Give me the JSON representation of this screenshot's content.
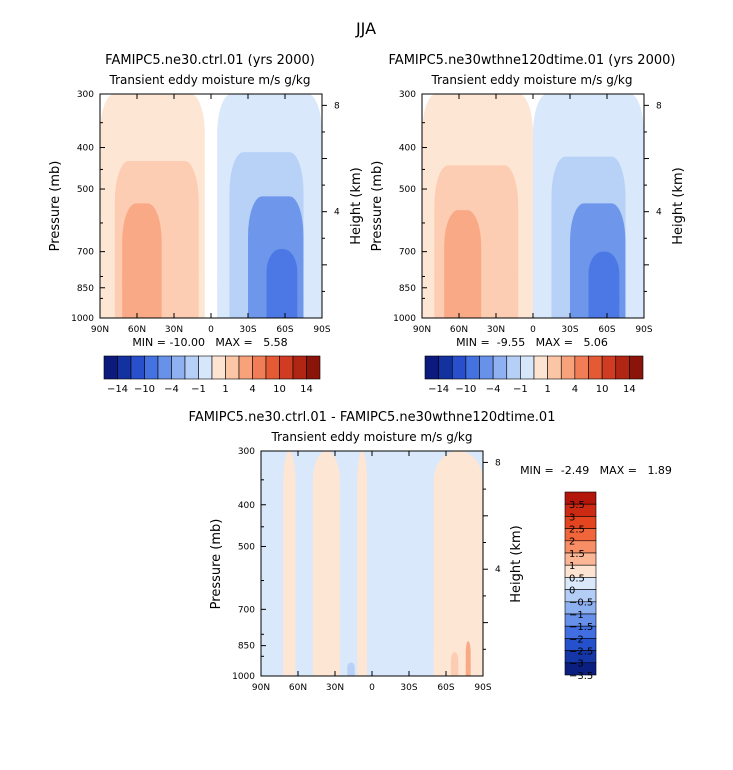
{
  "figure": {
    "season": "JJA"
  },
  "chart_data": [
    {
      "id": "ctrl",
      "type": "heatmap",
      "title": "FAMIPC5.ne30.ctrl.01 (yrs 2000)",
      "subtitle": "Transient eddy moisture m/s g/kg",
      "xlabel": "",
      "ylabel": "Pressure (mb)",
      "y2label": "Height (km)",
      "x_ticks": [
        "90N",
        "60N",
        "30N",
        "0",
        "30S",
        "60S",
        "90S"
      ],
      "xlim": [
        90,
        -90
      ],
      "y_ticks": [
        300,
        400,
        500,
        700,
        850,
        1000
      ],
      "ylim": [
        1000,
        300
      ],
      "y2_ticks": [
        4,
        8
      ],
      "stats_text": "MIN = -10.00   MAX =   5.58",
      "min": -10.0,
      "max": 5.58,
      "contour_levels": [
        -14,
        -12,
        -10,
        -8,
        -6,
        -4,
        -2,
        -1,
        0,
        1,
        2,
        4,
        6,
        8,
        10,
        12,
        14
      ],
      "colorbar_labels": [
        "-14",
        "-10",
        "-4",
        "-1",
        "1",
        "4",
        "10",
        "14"
      ],
      "features": [
        {
          "label": "positive lobe",
          "lat": [
            90,
            5
          ],
          "p": [
            1000,
            300
          ],
          "level": 0.5
        },
        {
          "label": "positive core",
          "lat": [
            78,
            10
          ],
          "p": [
            1000,
            430
          ],
          "level": 1.5
        },
        {
          "label": "positive max",
          "lat": [
            72,
            40
          ],
          "p": [
            1000,
            540
          ],
          "level": 3
        },
        {
          "label": "negative lobe",
          "lat": [
            -5,
            -90
          ],
          "p": [
            1000,
            300
          ],
          "level": -0.5
        },
        {
          "label": "negative core",
          "lat": [
            -15,
            -75
          ],
          "p": [
            1000,
            410
          ],
          "level": -2
        },
        {
          "label": "negative max",
          "lat": [
            -30,
            -75
          ],
          "p": [
            1000,
            520
          ],
          "level": -5
        },
        {
          "label": "negative min",
          "lat": [
            -45,
            -70
          ],
          "p": [
            1000,
            690
          ],
          "level": -10
        }
      ]
    },
    {
      "id": "exp",
      "type": "heatmap",
      "title": "FAMIPC5.ne30wthne120dtime.01 (yrs 2000)",
      "subtitle": "Transient eddy moisture m/s g/kg",
      "xlabel": "",
      "ylabel": "Pressure (mb)",
      "y2label": "Height (km)",
      "x_ticks": [
        "90N",
        "60N",
        "30N",
        "0",
        "30S",
        "60S",
        "90S"
      ],
      "xlim": [
        90,
        -90
      ],
      "y_ticks": [
        300,
        400,
        500,
        700,
        850,
        1000
      ],
      "ylim": [
        1000,
        300
      ],
      "y2_ticks": [
        4,
        8
      ],
      "stats_text": "MIN =  -9.55   MAX =   5.06",
      "min": -9.55,
      "max": 5.06,
      "contour_levels": [
        -14,
        -12,
        -10,
        -8,
        -6,
        -4,
        -2,
        -1,
        0,
        1,
        2,
        4,
        6,
        8,
        10,
        12,
        14
      ],
      "colorbar_labels": [
        "-14",
        "-10",
        "-4",
        "-1",
        "1",
        "4",
        "10",
        "14"
      ],
      "features": [
        {
          "label": "positive lobe",
          "lat": [
            90,
            0
          ],
          "p": [
            1000,
            300
          ],
          "level": 0.5
        },
        {
          "label": "positive core",
          "lat": [
            80,
            12
          ],
          "p": [
            1000,
            440
          ],
          "level": 1.5
        },
        {
          "label": "positive max",
          "lat": [
            72,
            42
          ],
          "p": [
            1000,
            560
          ],
          "level": 3
        },
        {
          "label": "negative lobe",
          "lat": [
            0,
            -90
          ],
          "p": [
            1000,
            300
          ],
          "level": -0.5
        },
        {
          "label": "negative core",
          "lat": [
            -15,
            -75
          ],
          "p": [
            1000,
            420
          ],
          "level": -2
        },
        {
          "label": "negative max",
          "lat": [
            -30,
            -75
          ],
          "p": [
            1000,
            540
          ],
          "level": -5
        },
        {
          "label": "negative min",
          "lat": [
            -45,
            -70
          ],
          "p": [
            1000,
            700
          ],
          "level": -9
        }
      ]
    },
    {
      "id": "diff",
      "type": "heatmap",
      "title": "FAMIPC5.ne30.ctrl.01 - FAMIPC5.ne30wthne120dtime.01",
      "subtitle": "Transient eddy moisture m/s g/kg",
      "xlabel": "",
      "ylabel": "Pressure (mb)",
      "y2label": "Height (km)",
      "x_ticks": [
        "90N",
        "60N",
        "30N",
        "0",
        "30S",
        "60S",
        "90S"
      ],
      "xlim": [
        90,
        -90
      ],
      "y_ticks": [
        300,
        400,
        500,
        700,
        850,
        1000
      ],
      "ylim": [
        1000,
        300
      ],
      "y2_ticks": [
        4,
        8
      ],
      "stats_text": "MIN =  -2.49   MAX =   1.89",
      "min": -2.49,
      "max": 1.89,
      "contour_levels": [
        -3.5,
        -3,
        -2.5,
        -2,
        -1.5,
        -1,
        -0.5,
        0,
        0.5,
        1,
        1.5,
        2,
        2.5,
        3,
        3.5
      ],
      "colorbar_labels": [
        "3.5",
        "3",
        "2.5",
        "2",
        "1.5",
        "1",
        "0.5",
        "0",
        "-0.5",
        "-1",
        "-1.5",
        "-2",
        "-2.5",
        "-3",
        "-3.5"
      ],
      "features": [
        {
          "label": "positive band",
          "lat": [
            72,
            62
          ],
          "p": [
            1000,
            300
          ],
          "level": 0.25
        },
        {
          "label": "positive band",
          "lat": [
            48,
            26
          ],
          "p": [
            1000,
            300
          ],
          "level": 0.25
        },
        {
          "label": "positive band",
          "lat": [
            12,
            4
          ],
          "p": [
            1000,
            300
          ],
          "level": 0.25
        },
        {
          "label": "positive band",
          "lat": [
            -50,
            -90
          ],
          "p": [
            1000,
            300
          ],
          "level": 0.25
        },
        {
          "label": "positive patch",
          "lat": [
            -64,
            -70
          ],
          "p": [
            1000,
            880
          ],
          "level": 0.75
        },
        {
          "label": "positive patch",
          "lat": [
            -76,
            -80
          ],
          "p": [
            1000,
            830
          ],
          "level": 1.25
        },
        {
          "label": "negative blob",
          "lat": [
            20,
            14
          ],
          "p": [
            1000,
            930
          ],
          "level": -0.75
        }
      ]
    }
  ]
}
